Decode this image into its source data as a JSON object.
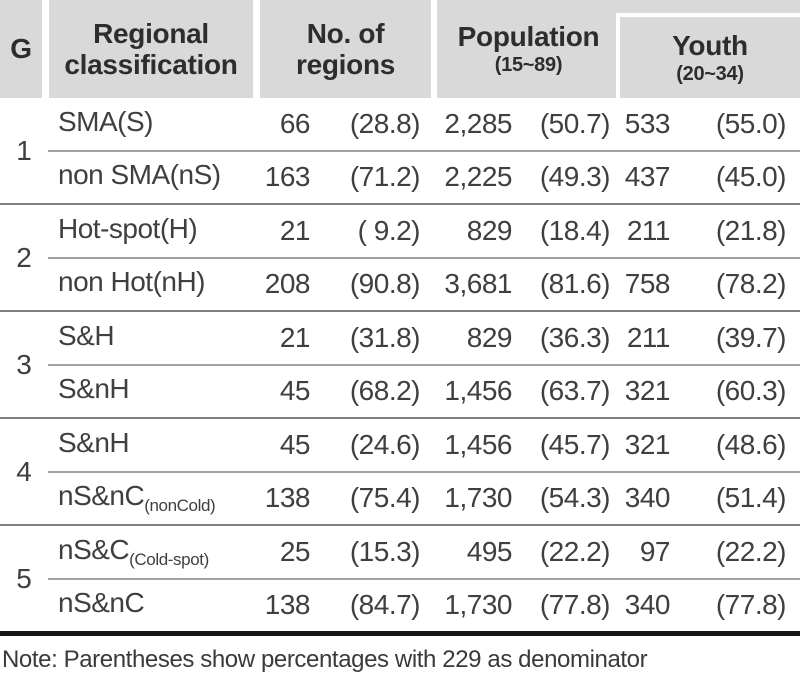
{
  "colors": {
    "header_bg": "#d9d9d9",
    "header_text": "#2d2d2d",
    "body_text": "#3f3f3f",
    "row_line": "#a2a2a2",
    "group_line": "#808080",
    "bottom_rule": "#161616",
    "youth_highlight_outline": "#ffffff"
  },
  "header": {
    "g": "G",
    "regional_line1": "Regional",
    "regional_line2": "classification",
    "regions_line1": "No. of",
    "regions_line2": "regions",
    "population_line1": "Population",
    "population_line2": "(15~89)",
    "youth_line1": "Youth",
    "youth_line2": "(20~34)"
  },
  "groups": [
    {
      "g": "1",
      "rows": [
        {
          "label": "SMA(S)",
          "label_sub": "",
          "n": "66",
          "n_pct": "(28.8)",
          "pop": "2,285",
          "pop_pct": "(50.7)",
          "youth": "533",
          "youth_pct": "(55.0)"
        },
        {
          "label": "non SMA(nS)",
          "label_sub": "",
          "n": "163",
          "n_pct": "(71.2)",
          "pop": "2,225",
          "pop_pct": "(49.3)",
          "youth": "437",
          "youth_pct": "(45.0)"
        }
      ]
    },
    {
      "g": "2",
      "rows": [
        {
          "label": "Hot-spot(H)",
          "label_sub": "",
          "n": "21",
          "n_pct": "( 9.2)",
          "pop": "829",
          "pop_pct": "(18.4)",
          "youth": "211",
          "youth_pct": "(21.8)"
        },
        {
          "label": "non Hot(nH)",
          "label_sub": "",
          "n": "208",
          "n_pct": "(90.8)",
          "pop": "3,681",
          "pop_pct": "(81.6)",
          "youth": "758",
          "youth_pct": "(78.2)"
        }
      ]
    },
    {
      "g": "3",
      "rows": [
        {
          "label": "S&H",
          "label_sub": "",
          "n": "21",
          "n_pct": "(31.8)",
          "pop": "829",
          "pop_pct": "(36.3)",
          "youth": "211",
          "youth_pct": "(39.7)"
        },
        {
          "label": "S&nH",
          "label_sub": "",
          "n": "45",
          "n_pct": "(68.2)",
          "pop": "1,456",
          "pop_pct": "(63.7)",
          "youth": "321",
          "youth_pct": "(60.3)"
        }
      ]
    },
    {
      "g": "4",
      "rows": [
        {
          "label": "S&nH",
          "label_sub": "",
          "n": "45",
          "n_pct": "(24.6)",
          "pop": "1,456",
          "pop_pct": "(45.7)",
          "youth": "321",
          "youth_pct": "(48.6)"
        },
        {
          "label": "nS&nC",
          "label_sub": "(nonCold)",
          "n": "138",
          "n_pct": "(75.4)",
          "pop": "1,730",
          "pop_pct": "(54.3)",
          "youth": "340",
          "youth_pct": "(51.4)"
        }
      ]
    },
    {
      "g": "5",
      "rows": [
        {
          "label": "nS&C",
          "label_sub": "(Cold-spot)",
          "n": "25",
          "n_pct": "(15.3)",
          "pop": "495",
          "pop_pct": "(22.2)",
          "youth": "97",
          "youth_pct": "(22.2)"
        },
        {
          "label": "nS&nC",
          "label_sub": "",
          "n": "138",
          "n_pct": "(84.7)",
          "pop": "1,730",
          "pop_pct": "(77.8)",
          "youth": "340",
          "youth_pct": "(77.8)"
        }
      ]
    }
  ],
  "note": "Note: Parentheses show percentages with 229 as denominator",
  "chart_data": {
    "type": "table",
    "columns": [
      "G",
      "Regional classification",
      "No. of regions",
      "No. of regions (%)",
      "Population (15~89)",
      "Population (15~89) (%)",
      "Youth (20~34)",
      "Youth (20~34) (%)"
    ],
    "rows": [
      [
        "1",
        "SMA(S)",
        66,
        28.8,
        2285,
        50.7,
        533,
        55.0
      ],
      [
        "1",
        "non SMA(nS)",
        163,
        71.2,
        2225,
        49.3,
        437,
        45.0
      ],
      [
        "2",
        "Hot-spot(H)",
        21,
        9.2,
        829,
        18.4,
        211,
        21.8
      ],
      [
        "2",
        "non Hot(nH)",
        208,
        90.8,
        3681,
        81.6,
        758,
        78.2
      ],
      [
        "3",
        "S&H",
        21,
        31.8,
        829,
        36.3,
        211,
        39.7
      ],
      [
        "3",
        "S&nH",
        45,
        68.2,
        1456,
        63.7,
        321,
        60.3
      ],
      [
        "4",
        "S&nH",
        45,
        24.6,
        1456,
        45.7,
        321,
        48.6
      ],
      [
        "4",
        "nS&nC(nonCold)",
        138,
        75.4,
        1730,
        54.3,
        340,
        51.4
      ],
      [
        "5",
        "nS&C(Cold-spot)",
        25,
        15.3,
        495,
        22.2,
        97,
        22.2
      ],
      [
        "5",
        "nS&nC",
        138,
        84.7,
        1730,
        77.8,
        340,
        77.8
      ]
    ],
    "note": "Note: Parentheses show percentages with 229 as denominator",
    "layout_hints": {
      "grouped_by_column": "G",
      "highlighted_column": "Youth (20~34)",
      "grid": "horizontal rules only"
    }
  }
}
